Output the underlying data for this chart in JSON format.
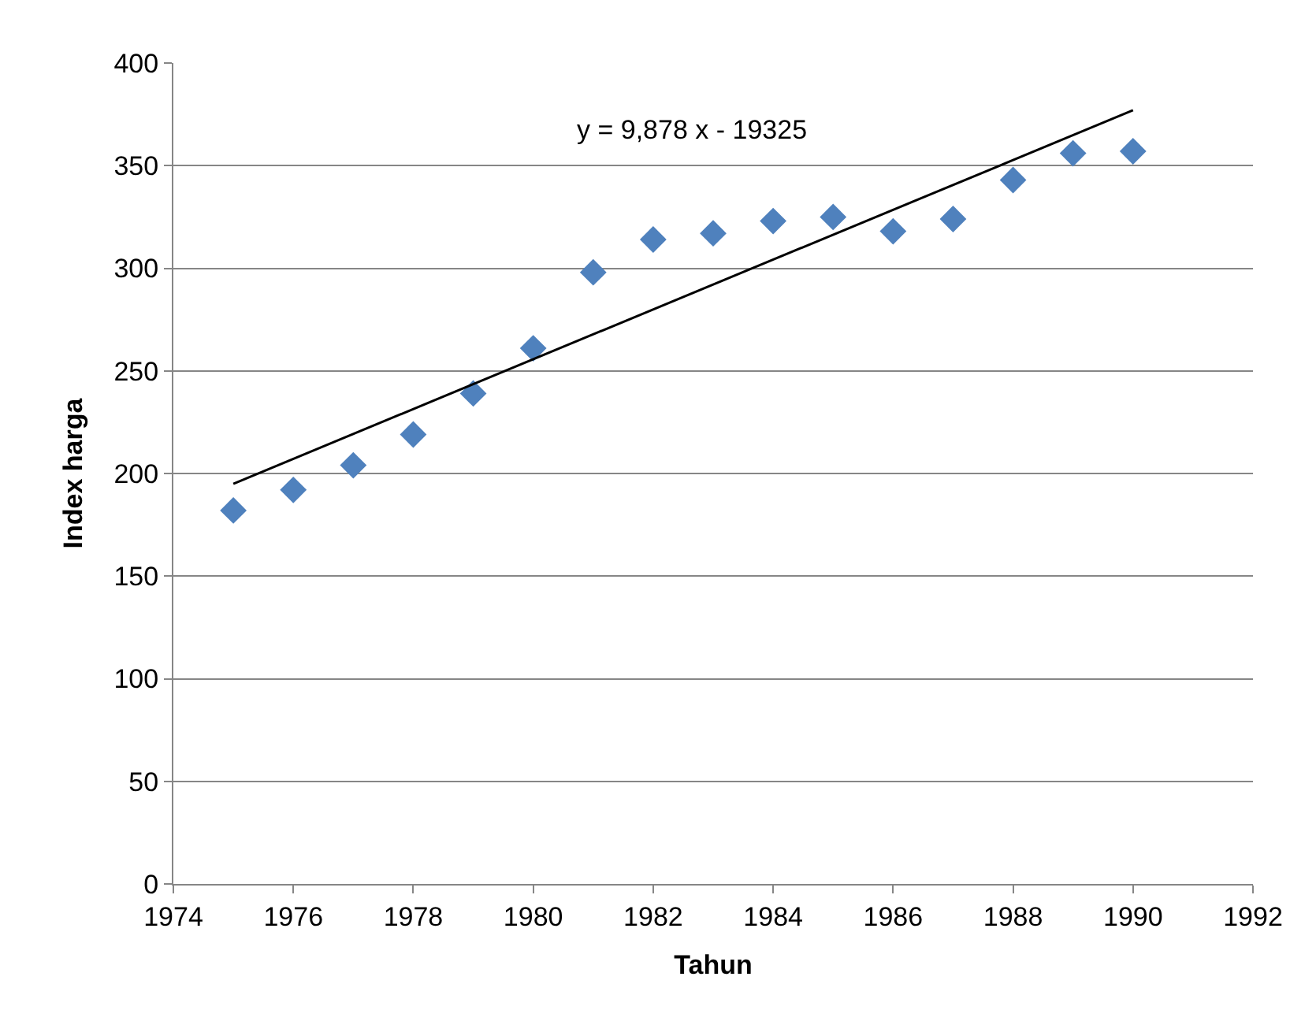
{
  "chart_data": {
    "type": "scatter",
    "xlabel": "Tahun",
    "ylabel": "Index harga",
    "xlim": [
      1974,
      1992
    ],
    "xticks": [
      1974,
      1976,
      1978,
      1980,
      1982,
      1984,
      1986,
      1988,
      1990,
      1992
    ],
    "ylim": [
      0,
      400
    ],
    "yticks": [
      0,
      50,
      100,
      150,
      200,
      250,
      300,
      350,
      400
    ],
    "grid": "y",
    "marker": "diamond",
    "series": [
      {
        "color": "#4f81bd",
        "x": [
          1975,
          1976,
          1977,
          1978,
          1979,
          1980,
          1981,
          1982,
          1983,
          1984,
          1985,
          1986,
          1987,
          1988,
          1989,
          1990
        ],
        "values": [
          182,
          192,
          204,
          219,
          239,
          261,
          298,
          314,
          317,
          323,
          325,
          318,
          324,
          343,
          356,
          357
        ]
      },
      {
        "type": "line",
        "color": "#000000",
        "marker": "none",
        "line_style": "solid",
        "x": [
          1975,
          1990
        ],
        "values": [
          195,
          377
        ]
      }
    ],
    "annotations": [
      "y = 9,878 x - 19325"
    ]
  }
}
